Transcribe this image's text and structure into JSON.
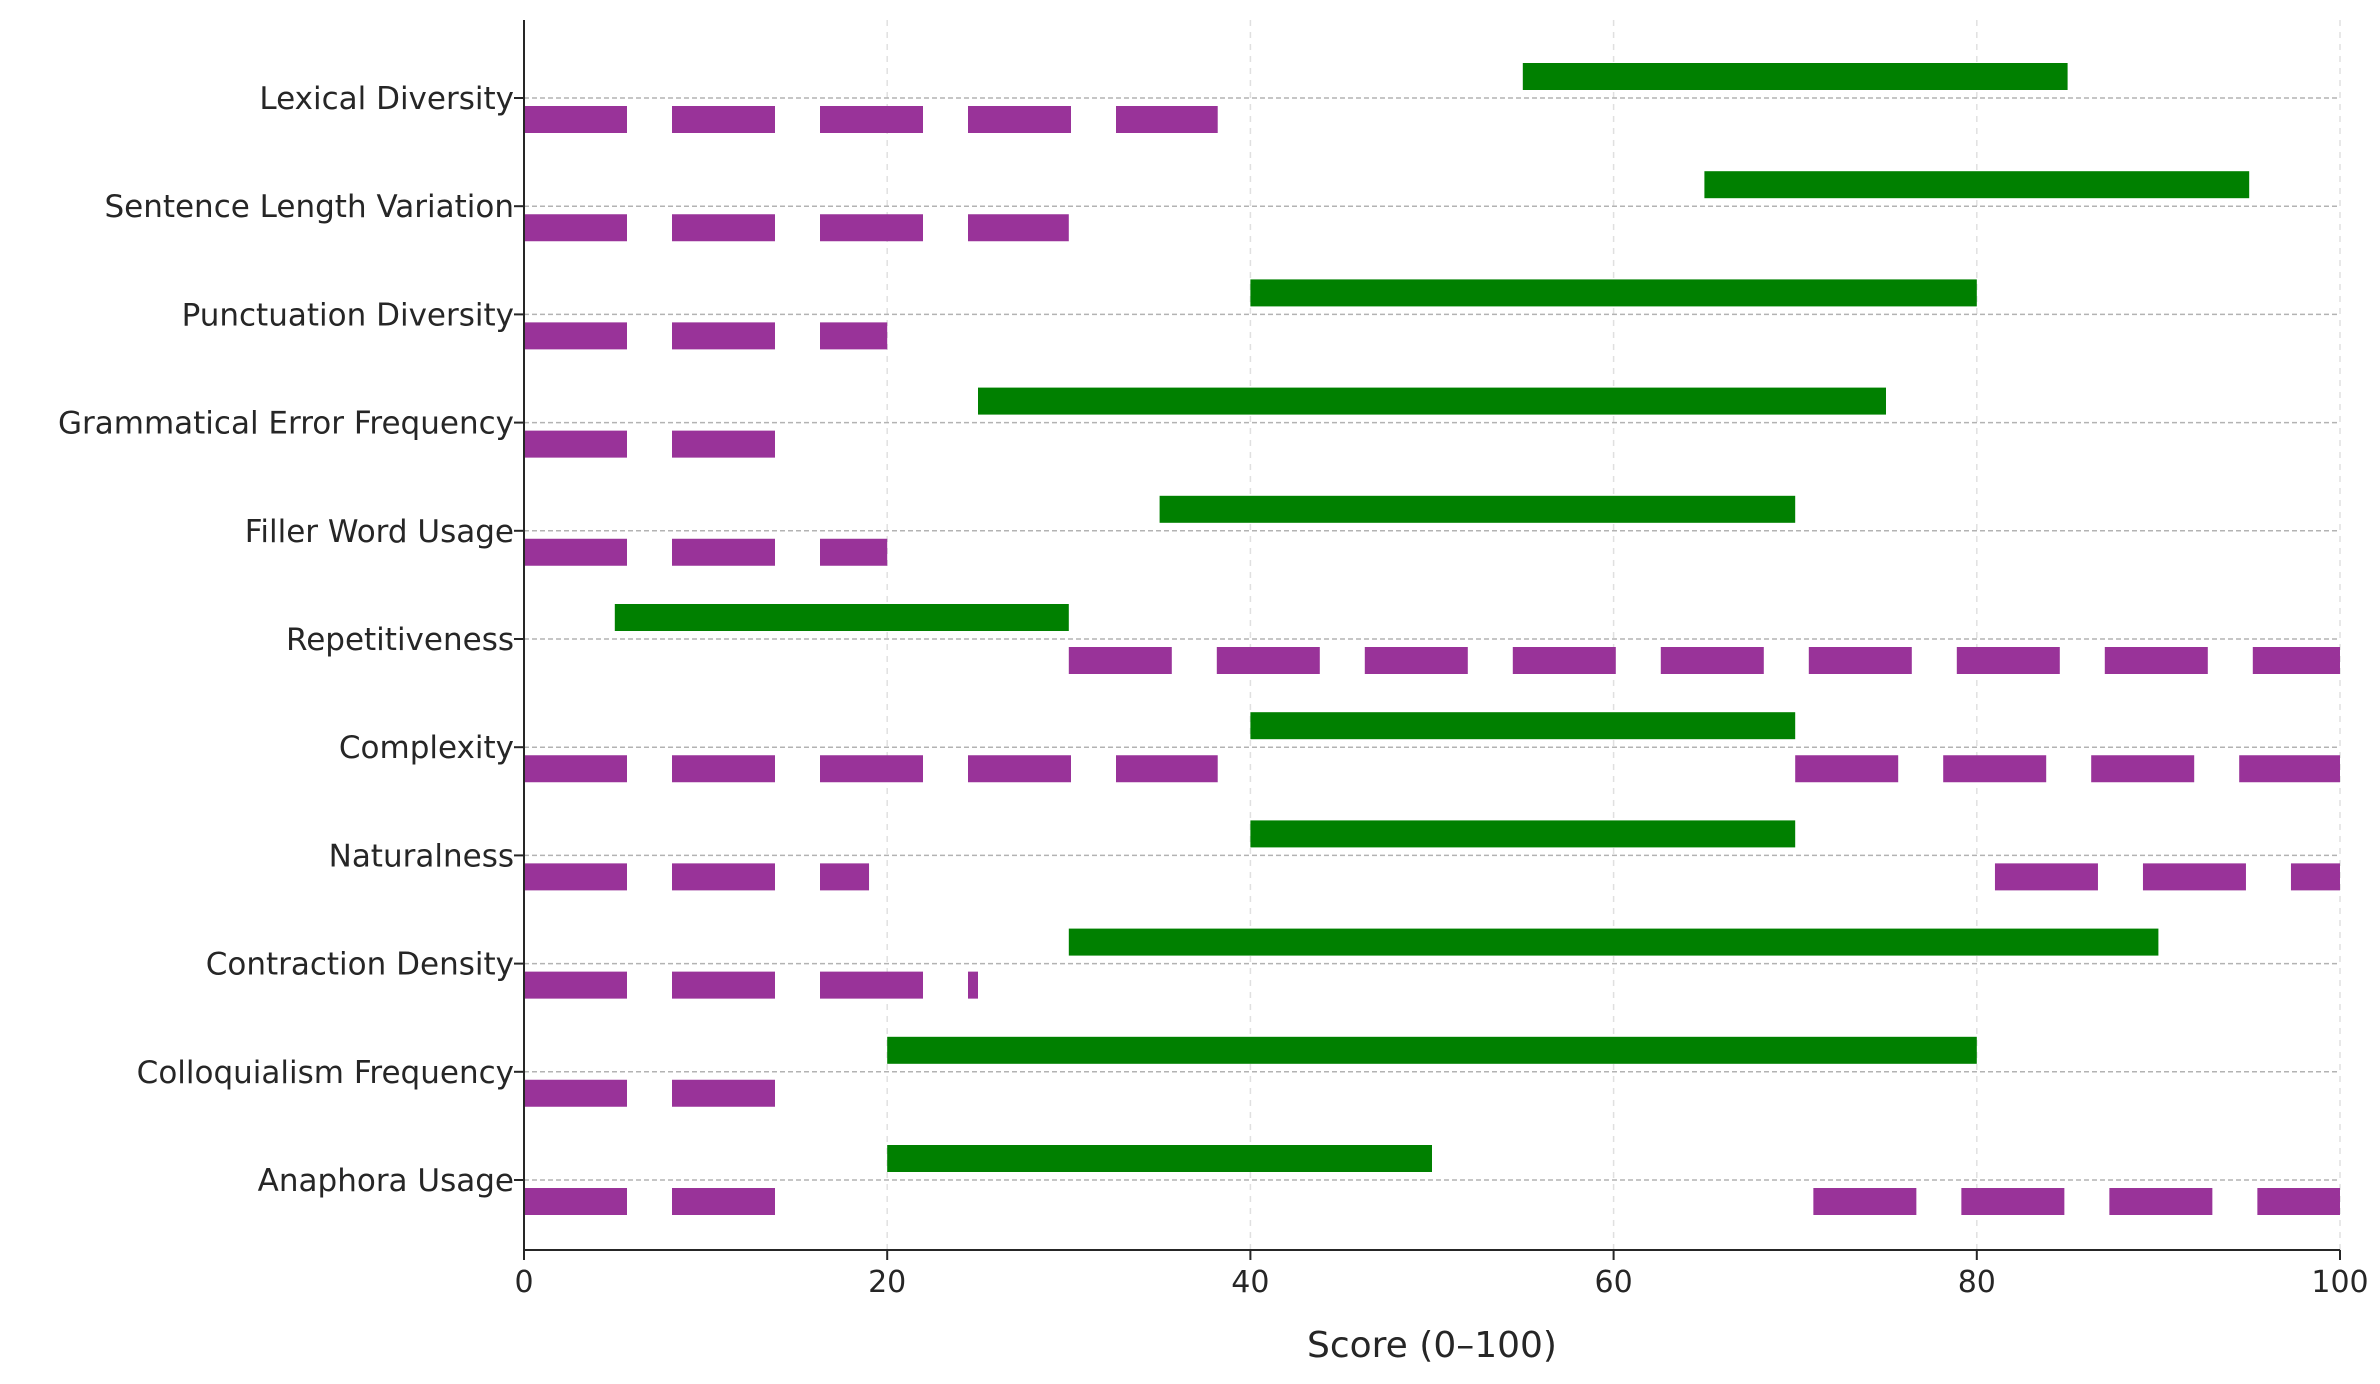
{
  "chart_data": {
    "type": "bar",
    "orientation": "horizontal",
    "xlabel": "Score (0–100)",
    "ylabel": "",
    "title": "",
    "xlim": [
      0,
      100
    ],
    "xticks": [
      "0",
      "20",
      "40",
      "60",
      "80",
      "100"
    ],
    "grid": {
      "x": true,
      "x_style": "dashed-light",
      "y": true,
      "y_style": "dashed-gray"
    },
    "legend": "none",
    "colors": {
      "range": "#008000",
      "dashed": "#993399",
      "axis": "#262626",
      "grid_x": "#e0e0e0",
      "grid_y": "#b3b3b3"
    },
    "categories": [
      "Lexical Diversity",
      "Sentence Length Variation",
      "Punctuation Diversity",
      "Grammatical Error Frequency",
      "Filler Word Usage",
      "Repetitiveness",
      "Complexity",
      "Naturalness",
      "Contraction Density",
      "Colloquialism Frequency",
      "Anaphora Usage"
    ],
    "ranges": [
      {
        "start": 55,
        "end": 85
      },
      {
        "start": 65,
        "end": 95
      },
      {
        "start": 40,
        "end": 80
      },
      {
        "start": 25,
        "end": 75
      },
      {
        "start": 35,
        "end": 70
      },
      {
        "start": 5,
        "end": 30
      },
      {
        "start": 40,
        "end": 70
      },
      {
        "start": 40,
        "end": 70
      },
      {
        "start": 30,
        "end": 90
      },
      {
        "start": 20,
        "end": 80
      },
      {
        "start": 20,
        "end": 50
      }
    ],
    "dashed_segments": [
      [
        [
          0,
          38.2
        ]
      ],
      [
        [
          0,
          30
        ]
      ],
      [
        [
          0,
          20
        ]
      ],
      [
        [
          0,
          14
        ]
      ],
      [
        [
          0,
          20
        ]
      ],
      [
        [
          30,
          100
        ]
      ],
      [
        [
          0,
          38.2
        ],
        [
          70,
          100
        ]
      ],
      [
        [
          0,
          19
        ],
        [
          81,
          100
        ]
      ],
      [
        [
          0,
          25
        ]
      ],
      [
        [
          0,
          14
        ]
      ],
      [
        [
          0,
          14
        ],
        [
          71,
          100
        ]
      ]
    ]
  }
}
